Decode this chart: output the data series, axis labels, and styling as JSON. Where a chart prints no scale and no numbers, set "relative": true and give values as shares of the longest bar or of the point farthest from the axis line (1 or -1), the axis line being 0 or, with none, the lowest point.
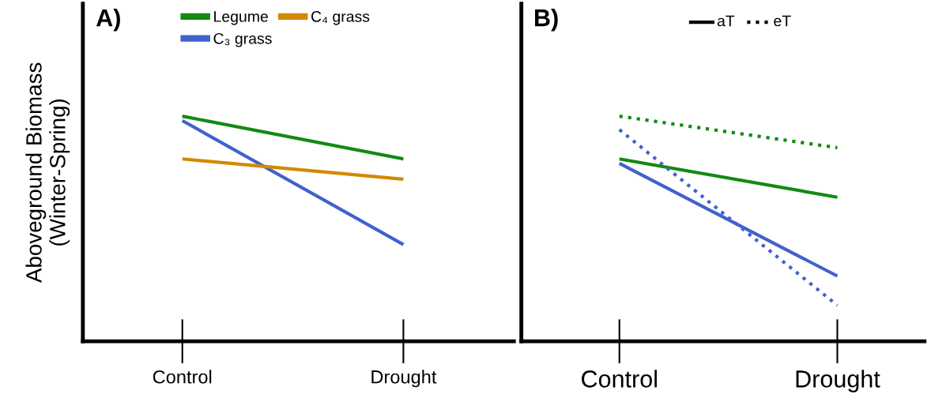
{
  "chart_data": [
    {
      "type": "line",
      "title": "A)",
      "ylabel": "Aboveground Biomass\n(Winter-Spring)",
      "categories": [
        "Control",
        "Drought"
      ],
      "relative": true,
      "legend": "top",
      "tick_labels": "x",
      "series": [
        {
          "name": "Legume",
          "color": "#138a13",
          "values": [
            1,
            0.81
          ]
        },
        {
          "name": "C₃ grass",
          "color": "#4062cc",
          "values": [
            0.98,
            0.43
          ]
        },
        {
          "name": "C₄ grass",
          "color": "#d18a00",
          "values": [
            0.81,
            0.72
          ]
        }
      ]
    },
    {
      "type": "line",
      "title": "B)",
      "categories": [
        "Control",
        "Drought"
      ],
      "relative": true,
      "tick_labels": "x",
      "annotations": [
        "aT",
        "eT"
      ],
      "series": [
        {
          "color": "#138a13",
          "line_style": "solid",
          "values": [
            0.81,
            0.64
          ]
        },
        {
          "color": "#4062cc",
          "line_style": "solid",
          "values": [
            0.79,
            0.29
          ]
        },
        {
          "color": "#138a13",
          "line_style": "dotted",
          "values": [
            1,
            0.86
          ]
        },
        {
          "color": "#4062cc",
          "line_style": "dotted",
          "values": [
            0.94,
            0.16
          ]
        }
      ]
    }
  ]
}
